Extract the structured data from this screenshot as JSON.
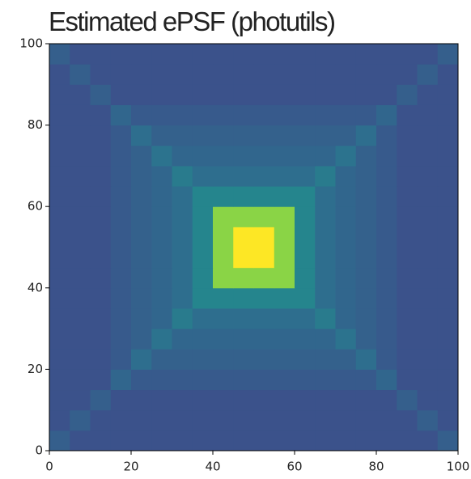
{
  "chart_data": {
    "type": "heatmap",
    "title": "Estimated ePSF (photutils)",
    "colormap": "viridis",
    "xlim": [
      0,
      100
    ],
    "ylim": [
      0,
      100
    ],
    "xticks": [
      0,
      20,
      40,
      60,
      80,
      100
    ],
    "yticks": [
      0,
      20,
      40,
      60,
      80,
      100
    ],
    "z": [
      [
        0.3,
        0.25,
        0.25,
        0.25,
        0.25,
        0.25,
        0.25,
        0.25,
        0.25,
        0.25,
        0.25,
        0.25,
        0.25,
        0.25,
        0.25,
        0.25,
        0.25,
        0.25,
        0.25,
        0.3
      ],
      [
        0.25,
        0.3,
        0.25,
        0.25,
        0.25,
        0.25,
        0.25,
        0.25,
        0.25,
        0.25,
        0.25,
        0.25,
        0.25,
        0.25,
        0.25,
        0.25,
        0.25,
        0.25,
        0.3,
        0.25
      ],
      [
        0.25,
        0.25,
        0.3,
        0.25,
        0.25,
        0.25,
        0.25,
        0.25,
        0.25,
        0.25,
        0.25,
        0.25,
        0.25,
        0.25,
        0.25,
        0.25,
        0.25,
        0.3,
        0.25,
        0.25
      ],
      [
        0.25,
        0.25,
        0.25,
        0.33,
        0.28,
        0.28,
        0.28,
        0.28,
        0.28,
        0.28,
        0.28,
        0.28,
        0.28,
        0.28,
        0.28,
        0.28,
        0.33,
        0.25,
        0.25,
        0.25
      ],
      [
        0.25,
        0.25,
        0.25,
        0.28,
        0.36,
        0.31,
        0.31,
        0.31,
        0.31,
        0.31,
        0.31,
        0.31,
        0.31,
        0.31,
        0.31,
        0.36,
        0.28,
        0.25,
        0.25,
        0.25
      ],
      [
        0.25,
        0.25,
        0.25,
        0.28,
        0.31,
        0.38,
        0.33,
        0.33,
        0.33,
        0.33,
        0.33,
        0.33,
        0.33,
        0.33,
        0.38,
        0.31,
        0.28,
        0.25,
        0.25,
        0.25
      ],
      [
        0.25,
        0.25,
        0.25,
        0.28,
        0.31,
        0.33,
        0.41,
        0.36,
        0.36,
        0.36,
        0.36,
        0.36,
        0.36,
        0.41,
        0.33,
        0.31,
        0.28,
        0.25,
        0.25,
        0.25
      ],
      [
        0.25,
        0.25,
        0.25,
        0.28,
        0.31,
        0.33,
        0.36,
        0.45,
        0.45,
        0.45,
        0.45,
        0.45,
        0.45,
        0.36,
        0.33,
        0.31,
        0.28,
        0.25,
        0.25,
        0.25
      ],
      [
        0.25,
        0.25,
        0.25,
        0.28,
        0.31,
        0.33,
        0.36,
        0.45,
        0.82,
        0.82,
        0.82,
        0.82,
        0.45,
        0.36,
        0.33,
        0.31,
        0.28,
        0.25,
        0.25,
        0.25
      ],
      [
        0.25,
        0.25,
        0.25,
        0.28,
        0.31,
        0.33,
        0.36,
        0.45,
        0.82,
        1.0,
        1.0,
        0.82,
        0.45,
        0.36,
        0.33,
        0.31,
        0.28,
        0.25,
        0.25,
        0.25
      ],
      [
        0.25,
        0.25,
        0.25,
        0.28,
        0.31,
        0.33,
        0.36,
        0.45,
        0.82,
        1.0,
        1.0,
        0.82,
        0.45,
        0.36,
        0.33,
        0.31,
        0.28,
        0.25,
        0.25,
        0.25
      ],
      [
        0.25,
        0.25,
        0.25,
        0.28,
        0.31,
        0.33,
        0.36,
        0.45,
        0.82,
        0.82,
        0.82,
        0.82,
        0.45,
        0.36,
        0.33,
        0.31,
        0.28,
        0.25,
        0.25,
        0.25
      ],
      [
        0.25,
        0.25,
        0.25,
        0.28,
        0.31,
        0.33,
        0.36,
        0.45,
        0.45,
        0.45,
        0.45,
        0.45,
        0.45,
        0.36,
        0.33,
        0.31,
        0.28,
        0.25,
        0.25,
        0.25
      ],
      [
        0.25,
        0.25,
        0.25,
        0.28,
        0.31,
        0.33,
        0.41,
        0.36,
        0.36,
        0.36,
        0.36,
        0.36,
        0.36,
        0.41,
        0.33,
        0.31,
        0.28,
        0.25,
        0.25,
        0.25
      ],
      [
        0.25,
        0.25,
        0.25,
        0.28,
        0.31,
        0.38,
        0.33,
        0.33,
        0.33,
        0.33,
        0.33,
        0.33,
        0.33,
        0.33,
        0.38,
        0.31,
        0.28,
        0.25,
        0.25,
        0.25
      ],
      [
        0.25,
        0.25,
        0.25,
        0.28,
        0.36,
        0.31,
        0.31,
        0.31,
        0.31,
        0.31,
        0.31,
        0.31,
        0.31,
        0.31,
        0.31,
        0.36,
        0.28,
        0.25,
        0.25,
        0.25
      ],
      [
        0.25,
        0.25,
        0.25,
        0.33,
        0.28,
        0.28,
        0.28,
        0.28,
        0.28,
        0.28,
        0.28,
        0.28,
        0.28,
        0.28,
        0.28,
        0.28,
        0.33,
        0.25,
        0.25,
        0.25
      ],
      [
        0.25,
        0.25,
        0.3,
        0.25,
        0.25,
        0.25,
        0.25,
        0.25,
        0.25,
        0.25,
        0.25,
        0.25,
        0.25,
        0.25,
        0.25,
        0.25,
        0.25,
        0.3,
        0.25,
        0.25
      ],
      [
        0.25,
        0.3,
        0.25,
        0.25,
        0.25,
        0.25,
        0.25,
        0.25,
        0.25,
        0.25,
        0.25,
        0.25,
        0.25,
        0.25,
        0.25,
        0.25,
        0.25,
        0.25,
        0.3,
        0.25
      ],
      [
        0.3,
        0.25,
        0.25,
        0.25,
        0.25,
        0.25,
        0.25,
        0.25,
        0.25,
        0.25,
        0.25,
        0.25,
        0.25,
        0.25,
        0.25,
        0.25,
        0.25,
        0.25,
        0.25,
        0.3
      ]
    ]
  }
}
